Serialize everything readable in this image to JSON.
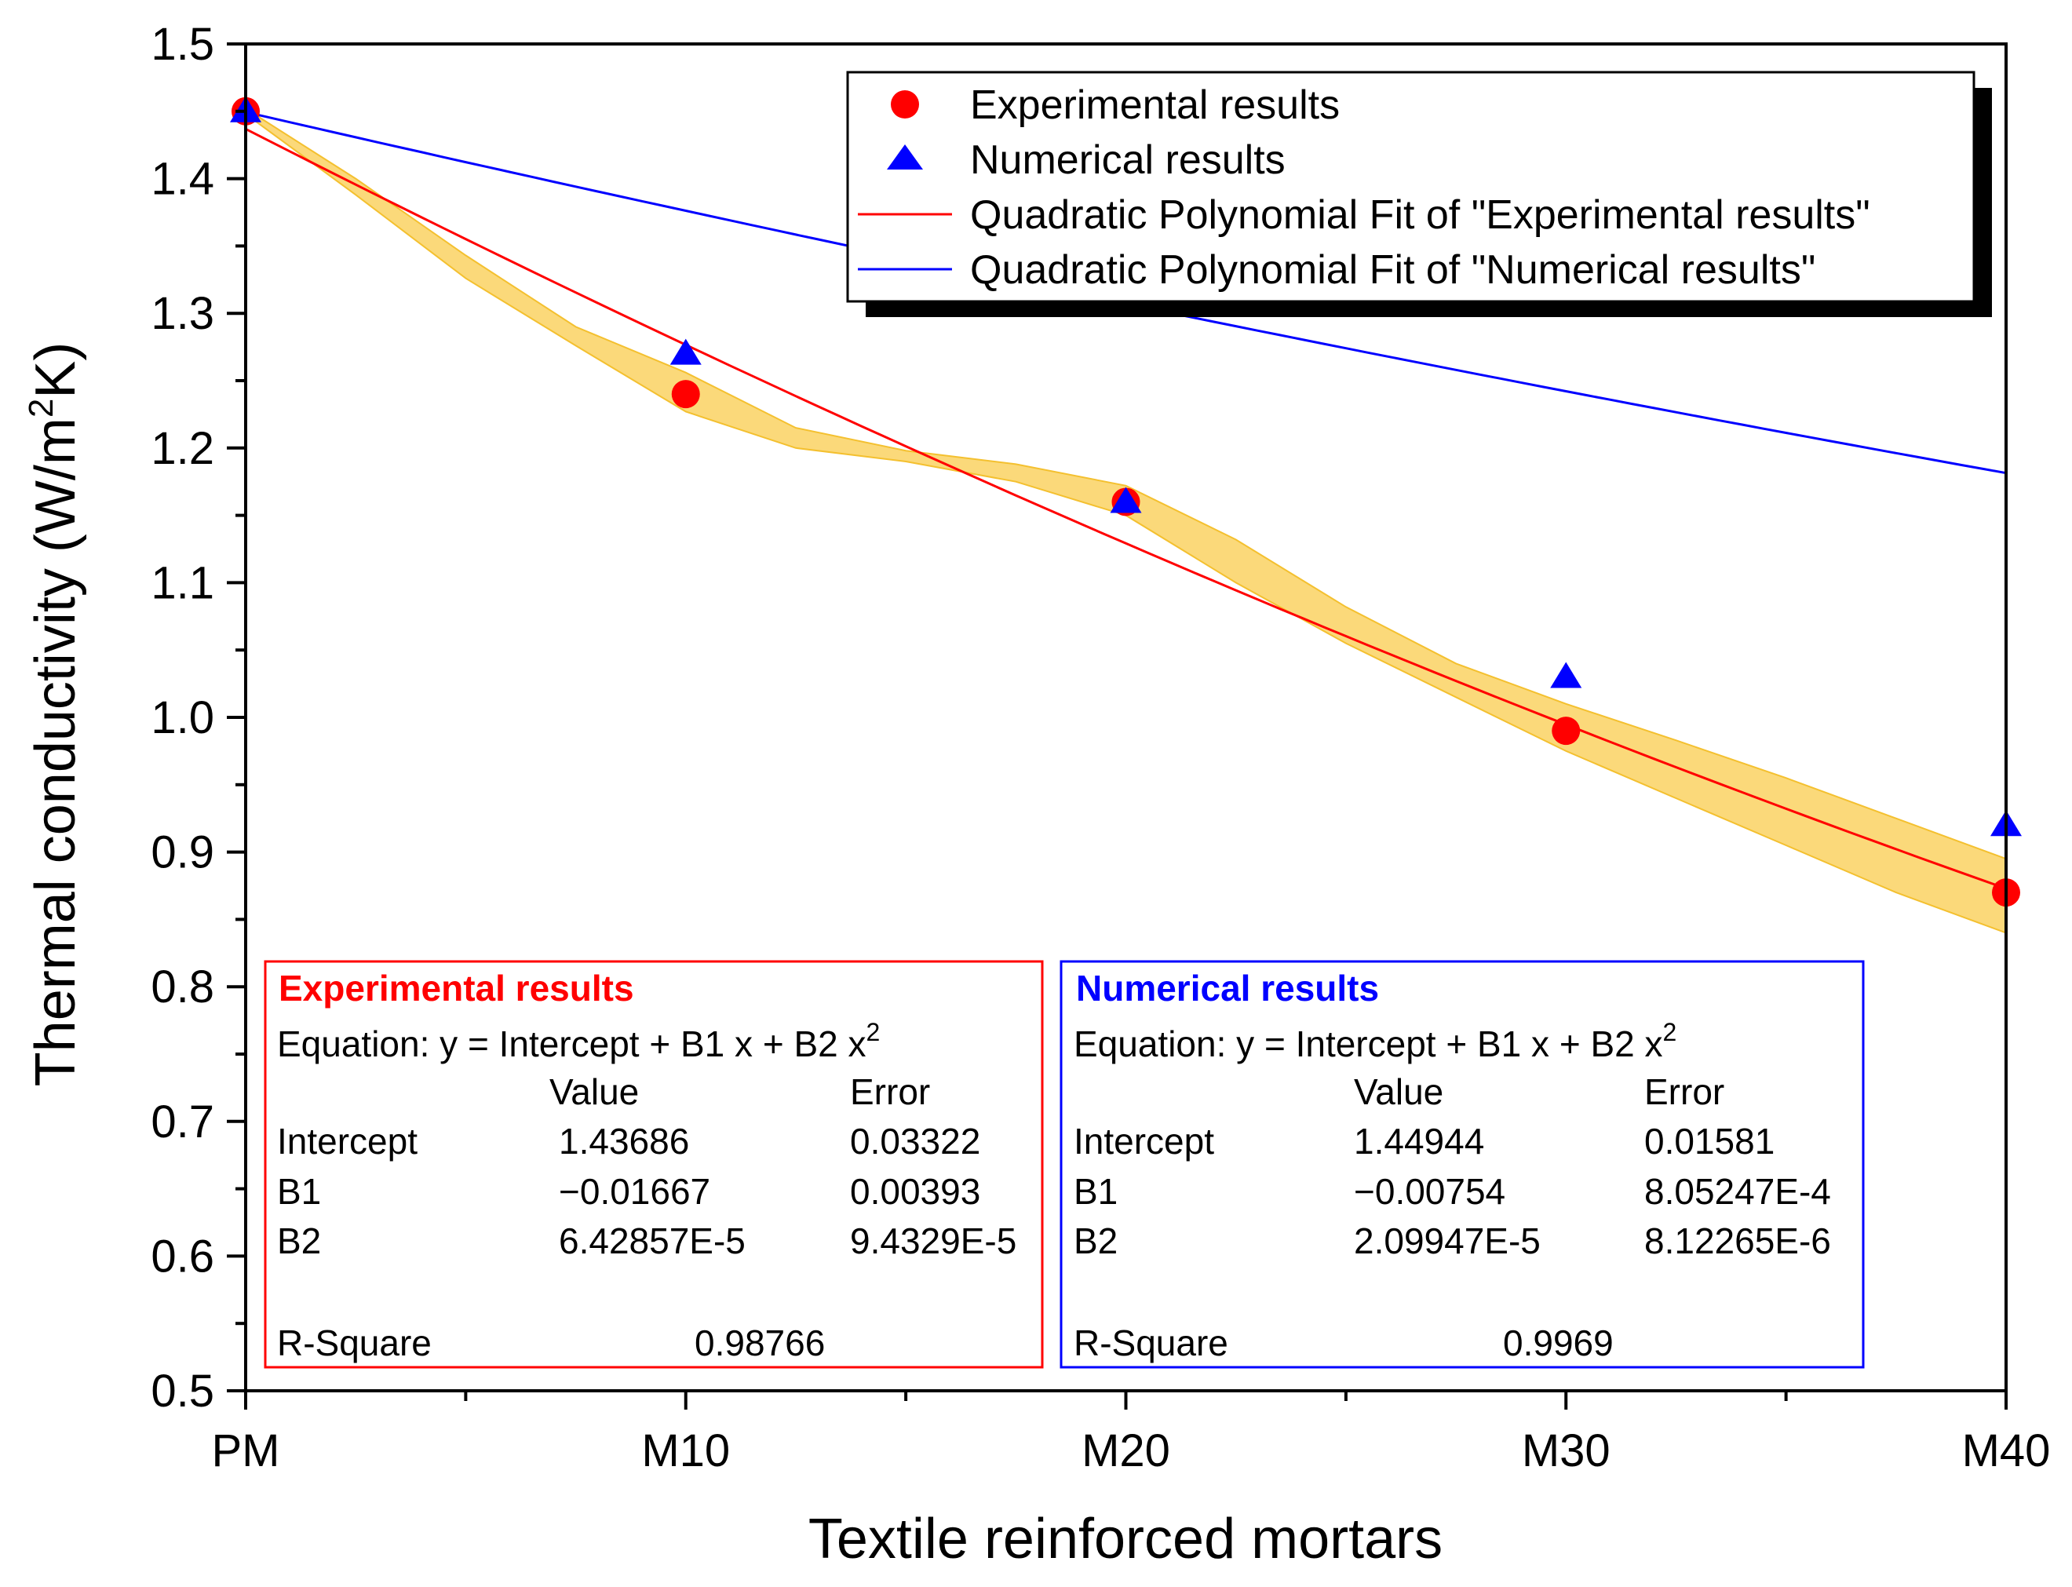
{
  "chart_data": {
    "type": "scatter",
    "title": "",
    "xlabel": "Textile reinforced mortars",
    "ylabel_main": "Thermal conductivity (W/m",
    "ylabel_sup": "2",
    "ylabel_end": "K)",
    "categories": [
      "PM",
      "M10",
      "M20",
      "M30",
      "M40"
    ],
    "x": [
      0,
      10,
      20,
      30,
      40
    ],
    "xlim": [
      0,
      40
    ],
    "ylim": [
      0.5,
      1.5
    ],
    "yticks": [
      "0.5",
      "0.6",
      "0.7",
      "0.8",
      "0.9",
      "1.0",
      "1.1",
      "1.2",
      "1.3",
      "1.4",
      "1.5"
    ],
    "series": [
      {
        "name": "Experimental results",
        "marker": "circle",
        "color": "#ff0000",
        "values": [
          1.45,
          1.24,
          1.16,
          0.99,
          0.87
        ]
      },
      {
        "name": "Numerical results",
        "marker": "triangle",
        "color": "#0000ff",
        "values": [
          1.45,
          1.27,
          1.16,
          1.03,
          0.92
        ]
      }
    ],
    "fits": [
      {
        "name": "Quadratic Polynomial Fit of \"Experimental results\"",
        "color": "#ff0000",
        "intercept": 1.43686,
        "b1": -0.01667,
        "b2": 6.42857e-05
      },
      {
        "name": "Quadratic Polynomial Fit of \"Numerical results\"",
        "color": "#0000ff",
        "intercept": 1.44944,
        "b1": -0.00754,
        "b2": 2.09947e-05
      }
    ],
    "confidence_band": {
      "color": "#f9cc4d",
      "x": [
        0,
        2.5,
        5,
        7.5,
        10,
        12.5,
        15,
        17.5,
        20,
        22.5,
        25,
        27.5,
        30,
        32.5,
        35,
        37.5,
        40
      ],
      "upper": [
        1.452,
        1.4,
        1.343,
        1.29,
        1.256,
        1.215,
        1.198,
        1.188,
        1.172,
        1.132,
        1.082,
        1.04,
        1.01,
        0.983,
        0.955,
        0.925,
        0.895
      ],
      "lower": [
        1.448,
        1.388,
        1.326,
        1.276,
        1.227,
        1.2,
        1.19,
        1.175,
        1.15,
        1.1,
        1.055,
        1.015,
        0.975,
        0.94,
        0.905,
        0.87,
        0.84
      ]
    },
    "stats_boxes": [
      {
        "title": "Experimental results",
        "color": "#ff0000",
        "equation": "Equation: y = Intercept + B1 x + B2 x",
        "equation_sup": "2",
        "col_value": "Value",
        "col_error": "Error",
        "rows": [
          {
            "name": "Intercept",
            "value": "1.43686",
            "error": "0.03322"
          },
          {
            "name": "B1",
            "value": "−0.01667",
            "error": "0.00393"
          },
          {
            "name": "B2",
            "value": "6.42857E-5",
            "error": "9.4329E-5"
          }
        ],
        "rsq_label": "R-Square",
        "rsq_value": "0.98766"
      },
      {
        "title": "Numerical results",
        "color": "#0000ff",
        "equation": "Equation: y = Intercept + B1 x + B2 x",
        "equation_sup": "2",
        "col_value": "Value",
        "col_error": "Error",
        "rows": [
          {
            "name": "Intercept",
            "value": "1.44944",
            "error": "0.01581"
          },
          {
            "name": "B1",
            "value": "−0.00754",
            "error": "8.05247E-4"
          },
          {
            "name": "B2",
            "value": "2.09947E-5",
            "error": "8.12265E-6"
          }
        ],
        "rsq_label": "R-Square",
        "rsq_value": "0.9969"
      }
    ],
    "legend": {
      "placement": "top-right",
      "entries": [
        "Experimental results",
        "Numerical results",
        "Quadratic Polynomial Fit of \"Experimental results\"",
        "Quadratic Polynomial Fit of \"Numerical results\""
      ]
    }
  }
}
